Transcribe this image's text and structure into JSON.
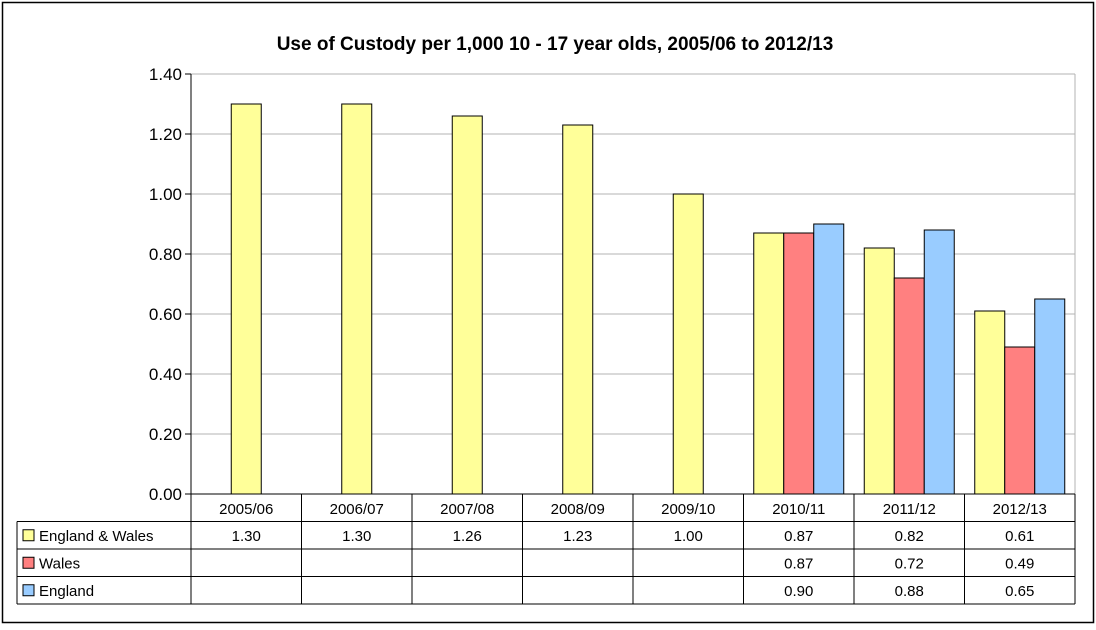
{
  "chart_data": {
    "type": "bar",
    "title": "Use of Custody per 1,000 10 - 17 year olds, 2005/06 to 2012/13",
    "xlabel": "",
    "ylabel": "",
    "ylim": [
      0,
      1.4
    ],
    "y_ticks": [
      "0.00",
      "0.20",
      "0.40",
      "0.60",
      "0.80",
      "1.00",
      "1.20",
      "1.40"
    ],
    "grid": true,
    "legend_placement": "data-table",
    "categories": [
      "2005/06",
      "2006/07",
      "2007/08",
      "2008/09",
      "2009/10",
      "2010/11",
      "2011/12",
      "2012/13"
    ],
    "series": [
      {
        "name": "England & Wales",
        "color": "#ffff99",
        "values": [
          1.3,
          1.3,
          1.26,
          1.23,
          1.0,
          0.87,
          0.82,
          0.61
        ],
        "labels": [
          "1.30",
          "1.30",
          "1.26",
          "1.23",
          "1.00",
          "0.87",
          "0.82",
          "0.61"
        ]
      },
      {
        "name": "Wales",
        "color": "#ff8080",
        "values": [
          null,
          null,
          null,
          null,
          null,
          0.87,
          0.72,
          0.49
        ],
        "labels": [
          "",
          "",
          "",
          "",
          "",
          "0.87",
          "0.72",
          "0.49"
        ]
      },
      {
        "name": "England",
        "color": "#99ccff",
        "values": [
          null,
          null,
          null,
          null,
          null,
          0.9,
          0.88,
          0.65
        ],
        "labels": [
          "",
          "",
          "",
          "",
          "",
          "0.90",
          "0.88",
          "0.65"
        ]
      }
    ]
  }
}
